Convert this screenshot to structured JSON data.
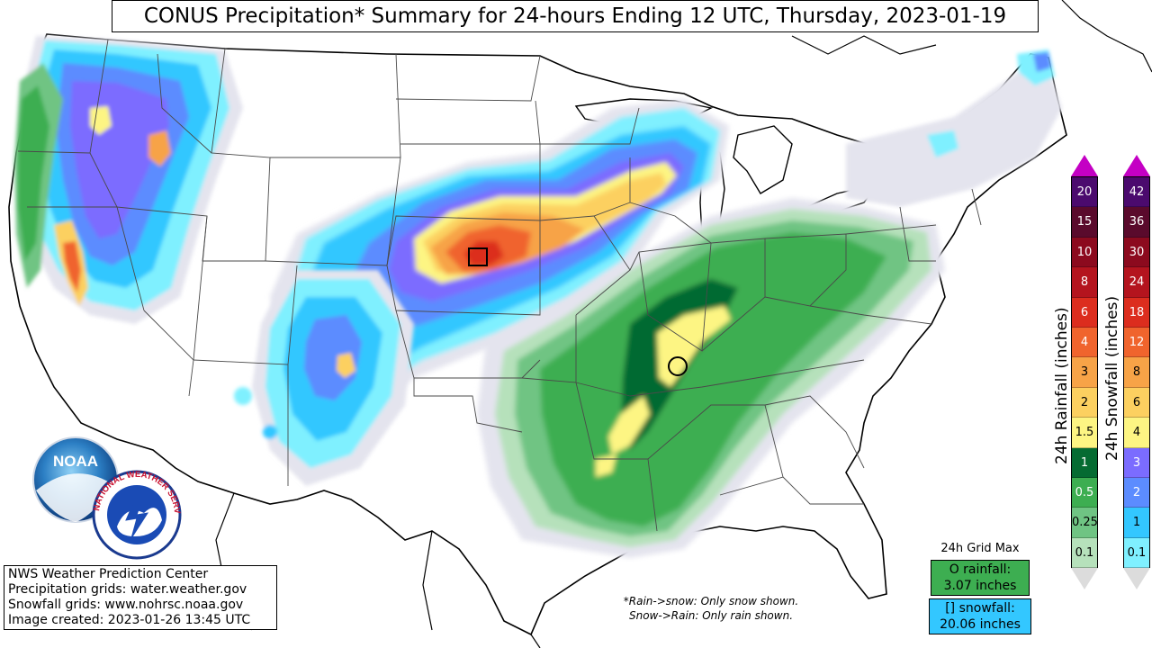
{
  "title": "CONUS Precipitation* Summary for 24-hours Ending 12 UTC, Thursday, 2023-01-19",
  "credits": [
    "NWS Weather Prediction Center",
    "Precipitation grids: water.weather.gov",
    "Snowfall grids: www.nohrsc.noaa.gov",
    "Image created: 2023-01-26 13:45 UTC"
  ],
  "note": {
    "line1": "*Rain->snow: Only snow shown.",
    "line2": "Snow->Rain: Only rain shown."
  },
  "grid_max": {
    "title": "24h Grid Max",
    "rainfall_label": "O rainfall:",
    "rainfall_value": "3.07 inches",
    "snowfall_label": "[] snowfall:",
    "snowfall_value": "20.06 inches"
  },
  "rain_legend": {
    "label": "24h Rainfall (inches)",
    "bins": [
      {
        "label": "20",
        "color": "#4b0a6e"
      },
      {
        "label": "15",
        "color": "#5a0a2c"
      },
      {
        "label": "10",
        "color": "#8c0a1e"
      },
      {
        "label": "8",
        "color": "#b4141e"
      },
      {
        "label": "6",
        "color": "#dc2d1e"
      },
      {
        "label": "4",
        "color": "#f0642d"
      },
      {
        "label": "3",
        "color": "#f7a347"
      },
      {
        "label": "2",
        "color": "#fcd060"
      },
      {
        "label": "1.5",
        "color": "#fdf583"
      },
      {
        "label": "1",
        "color": "#056b32"
      },
      {
        "label": "0.5",
        "color": "#3dae51"
      },
      {
        "label": "0.25",
        "color": "#6fc483"
      },
      {
        "label": "0.1",
        "color": "#b6e1bb"
      }
    ],
    "above_color": "#c400c4",
    "below_color": "#dcdcdc"
  },
  "snow_legend": {
    "label": "24h Snowfall (inches)",
    "bins": [
      {
        "label": "42",
        "color": "#4b0a6e"
      },
      {
        "label": "36",
        "color": "#5a0a2c"
      },
      {
        "label": "30",
        "color": "#8c0a1e"
      },
      {
        "label": "24",
        "color": "#b4141e"
      },
      {
        "label": "18",
        "color": "#dc2d1e"
      },
      {
        "label": "12",
        "color": "#f0642d"
      },
      {
        "label": "8",
        "color": "#f7a347"
      },
      {
        "label": "6",
        "color": "#fcd060"
      },
      {
        "label": "4",
        "color": "#fdf583"
      },
      {
        "label": "3",
        "color": "#7b6cff"
      },
      {
        "label": "2",
        "color": "#5c8cff"
      },
      {
        "label": "1",
        "color": "#33c7ff"
      },
      {
        "label": "0.1",
        "color": "#7ff0ff"
      }
    ],
    "above_color": "#c400c4",
    "below_color": "#dcdcdc"
  },
  "logos": {
    "noaa": "NOAA",
    "nws": "NATIONAL WEATHER SERVICE"
  },
  "colors": {
    "trace": "#e4e4ee",
    "rain_light": "#b6e1bb",
    "rain_025": "#6fc483",
    "rain_05": "#3dae51",
    "rain_1": "#056b32",
    "rain_15": "#fdf583",
    "snow_01": "#7ff0ff",
    "snow_1": "#33c7ff",
    "snow_2": "#5c8cff",
    "snow_3": "#7b6cff",
    "snow_4": "#fdf583",
    "snow_6": "#fcd060",
    "snow_8": "#f7a347",
    "snow_12": "#f0642d",
    "snow_18": "#dc2d1e"
  }
}
